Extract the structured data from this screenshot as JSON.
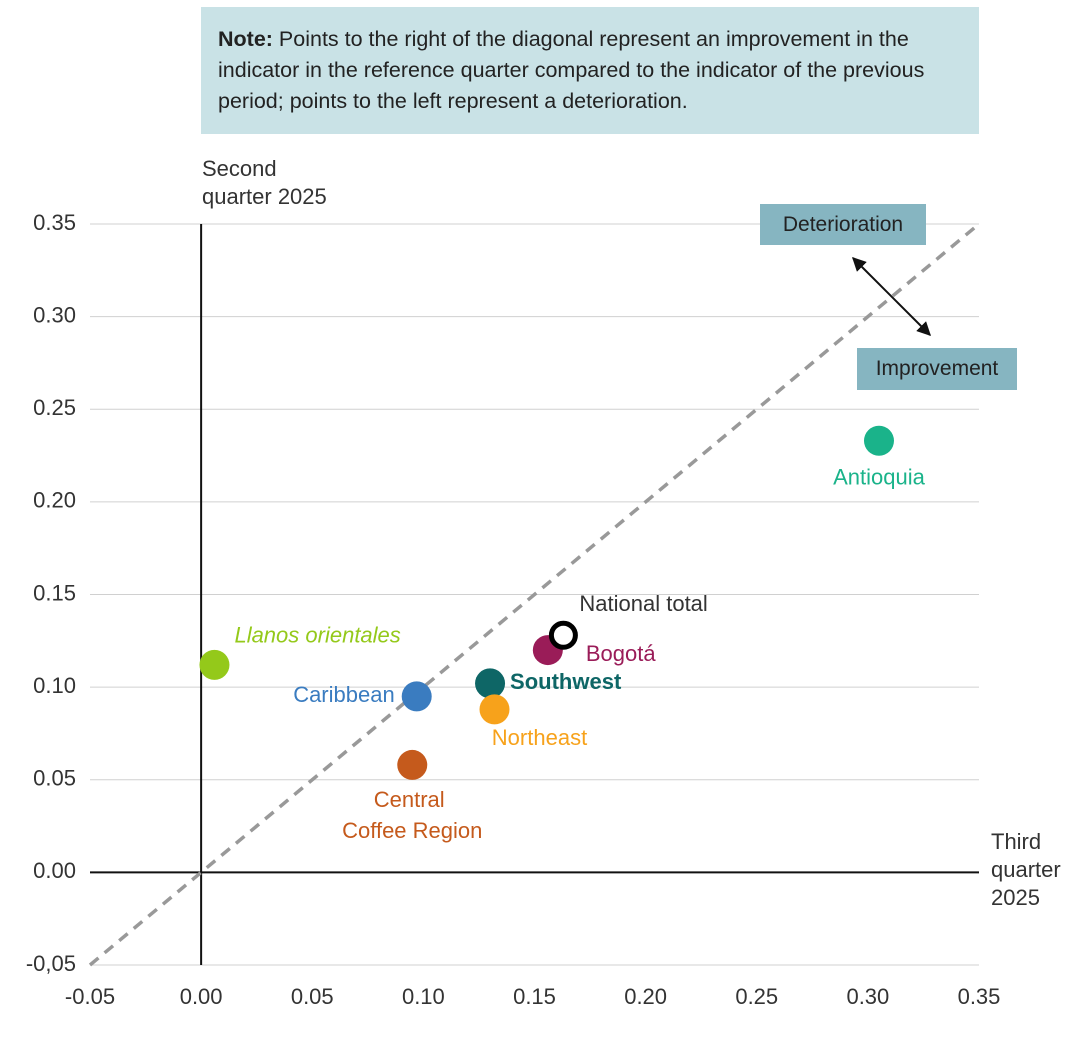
{
  "chart_data": {
    "type": "scatter",
    "note_label": "Note:",
    "note": "Points to the right of the diagonal represent an improvement in the indicator in the reference quarter compared to the indicator of the previous period; points to the left represent a deterioration.",
    "annotations": [
      "Deterioration",
      "Improvement"
    ],
    "y_label": "Second quarter 2025",
    "x_label": "Third quarter 2025",
    "xlim": [
      -0.05,
      0.35
    ],
    "ylim": [
      -0.05,
      0.35
    ],
    "xticks": [
      {
        "value": -0.05,
        "label": "-0.05"
      },
      {
        "value": 0,
        "label": "0.00"
      },
      {
        "value": 0.05,
        "label": "0.05"
      },
      {
        "value": 0.1,
        "label": "0.10"
      },
      {
        "value": 0.15,
        "label": "0.15"
      },
      {
        "value": 0.2,
        "label": "0.20"
      },
      {
        "value": 0.25,
        "label": "0.25"
      },
      {
        "value": 0.3,
        "label": "0.30"
      },
      {
        "value": 0.35,
        "label": "0.35"
      }
    ],
    "yticks": [
      {
        "value": -0.05,
        "label": "-0,05"
      },
      {
        "value": 0,
        "label": "0.00"
      },
      {
        "value": 0.05,
        "label": "0.05"
      },
      {
        "value": 0.1,
        "label": "0.10"
      },
      {
        "value": 0.15,
        "label": "0.15"
      },
      {
        "value": 0.2,
        "label": "0.20"
      },
      {
        "value": 0.25,
        "label": "0.25"
      },
      {
        "value": 0.3,
        "label": "0.30"
      },
      {
        "value": 0.35,
        "label": "0.35"
      }
    ],
    "grid": true,
    "diagonal": true,
    "points": [
      {
        "label": "Llanos orientales",
        "color": "#94c91a",
        "x": 0.006,
        "y": 0.112
      },
      {
        "label": "Caribbean",
        "color": "#3a7cc0",
        "x": 0.097,
        "y": 0.095
      },
      {
        "label": "Central Coffee Region",
        "color": "#c55a1c",
        "x": 0.095,
        "y": 0.058
      },
      {
        "label": "Southwest",
        "color": "#0e6666",
        "x": 0.13,
        "y": 0.102
      },
      {
        "label": "Northeast",
        "color": "#f7a21b",
        "x": 0.132,
        "y": 0.088
      },
      {
        "label": "Bogotá",
        "color": "#9a1c58",
        "x": 0.156,
        "y": 0.12
      },
      {
        "label": "National total",
        "color": "#000000",
        "x": 0.163,
        "y": 0.128
      },
      {
        "label": "Antioquia",
        "color": "#1ab38a",
        "x": 0.305,
        "y": 0.233
      }
    ]
  }
}
